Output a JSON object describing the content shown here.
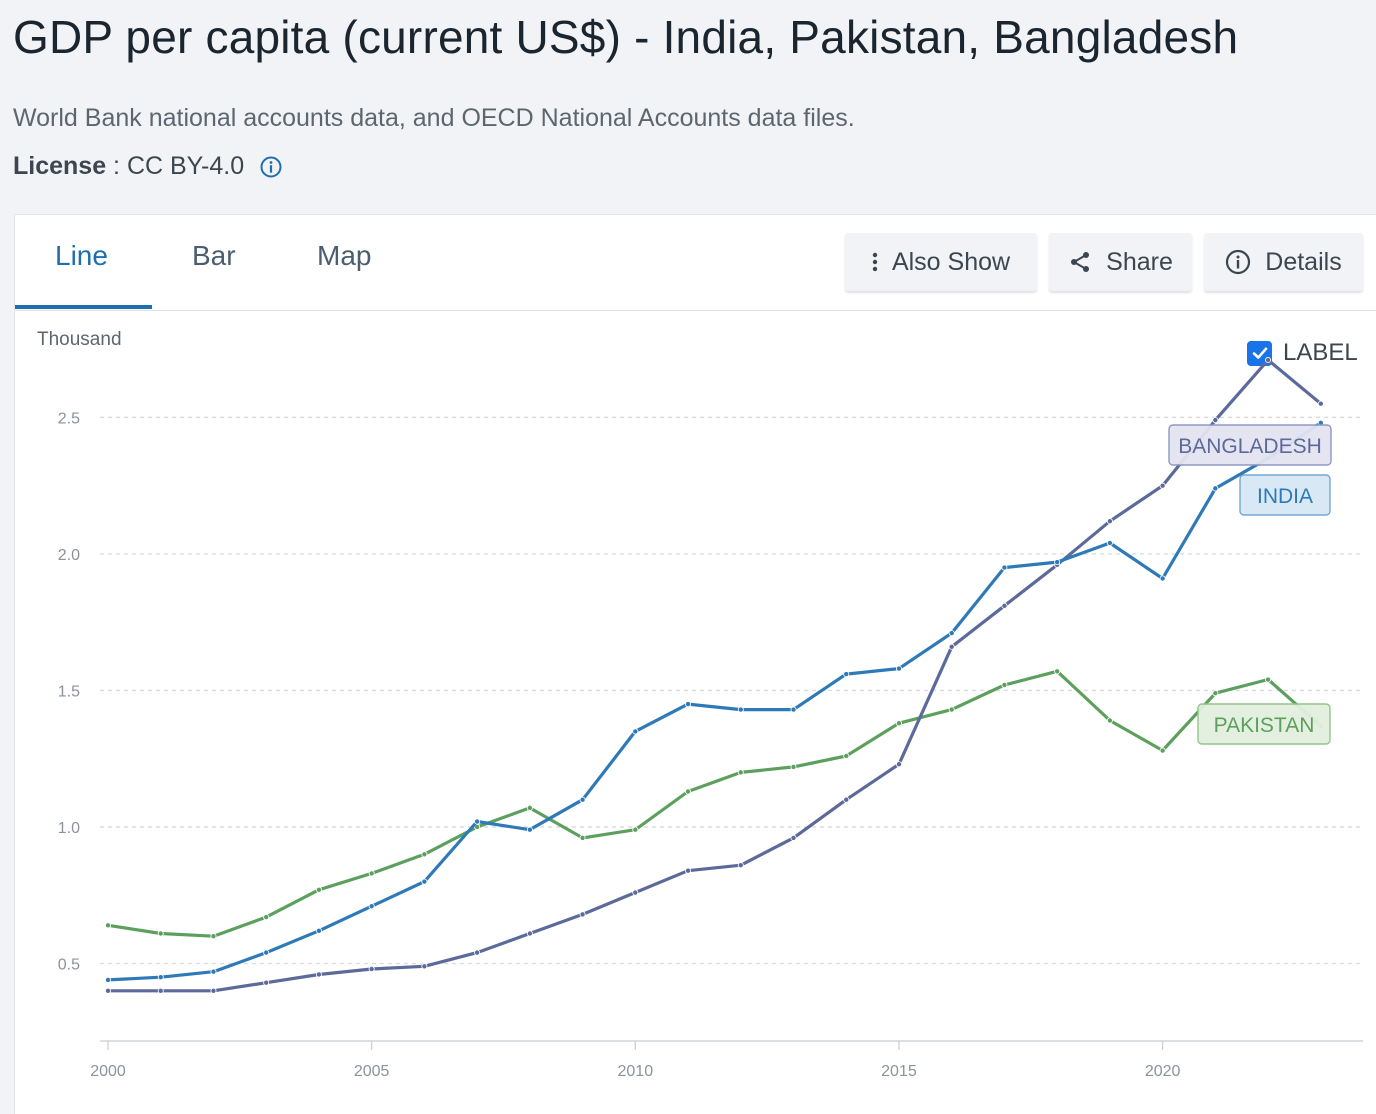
{
  "header": {
    "title": "GDP per capita (current US$) - India, Pakistan, Bangladesh",
    "source": "World Bank national accounts data, and OECD National Accounts data files.",
    "license_label": "License",
    "license_sep": " : ",
    "license_value": "CC BY-4.0"
  },
  "tabs": [
    {
      "label": "Line",
      "active": true
    },
    {
      "label": "Bar",
      "active": false
    },
    {
      "label": "Map",
      "active": false
    }
  ],
  "actions": {
    "also_show": "Also Show",
    "share": "Share",
    "details": "Details"
  },
  "label_toggle": {
    "text": "LABEL",
    "checked": true
  },
  "icons": {
    "info": "info-circle-icon",
    "also_show": "vertical-dots-icon",
    "share": "share-icon",
    "details": "info-circle-icon",
    "checkbox": "checkmark-icon"
  },
  "colors": {
    "india": "#2e7ab8",
    "bangladesh": "#5b6a9a",
    "pakistan": "#5da05d",
    "accent": "#1f6fb0"
  },
  "chart_data": {
    "type": "line",
    "ylabel": "Thousand",
    "x": [
      2000,
      2001,
      2002,
      2003,
      2004,
      2005,
      2006,
      2007,
      2008,
      2009,
      2010,
      2011,
      2012,
      2013,
      2014,
      2015,
      2016,
      2017,
      2018,
      2019,
      2020,
      2021,
      2022,
      2023
    ],
    "xticks": [
      2000,
      2005,
      2010,
      2015,
      2020
    ],
    "yticks": [
      0.5,
      1.0,
      1.5,
      2.0,
      2.5
    ],
    "ytick_labels": [
      "0.5",
      "1.0",
      "1.5",
      "2.0",
      "2.5"
    ],
    "xlim": [
      2000,
      2023.8
    ],
    "ylim": [
      0.22,
      2.82
    ],
    "grid": "horizontal-dashed",
    "series": [
      {
        "name": "BANGLADESH",
        "key": "bangladesh",
        "values": [
          0.4,
          0.4,
          0.4,
          0.43,
          0.46,
          0.48,
          0.49,
          0.54,
          0.61,
          0.68,
          0.76,
          0.84,
          0.86,
          0.96,
          1.1,
          1.23,
          1.66,
          1.81,
          1.96,
          2.12,
          2.25,
          2.49,
          2.71,
          2.55
        ]
      },
      {
        "name": "INDIA",
        "key": "india",
        "values": [
          0.44,
          0.45,
          0.47,
          0.54,
          0.62,
          0.71,
          0.8,
          1.02,
          0.99,
          1.1,
          1.35,
          1.45,
          1.43,
          1.43,
          1.56,
          1.58,
          1.71,
          1.95,
          1.97,
          2.04,
          1.91,
          2.24,
          2.35,
          2.48
        ]
      },
      {
        "name": "PAKISTAN",
        "key": "pakistan",
        "values": [
          0.64,
          0.61,
          0.6,
          0.67,
          0.77,
          0.83,
          0.9,
          1.0,
          1.07,
          0.96,
          0.99,
          1.13,
          1.2,
          1.22,
          1.26,
          1.38,
          1.43,
          1.52,
          1.57,
          1.39,
          1.28,
          1.49,
          1.54,
          1.37
        ]
      }
    ]
  }
}
